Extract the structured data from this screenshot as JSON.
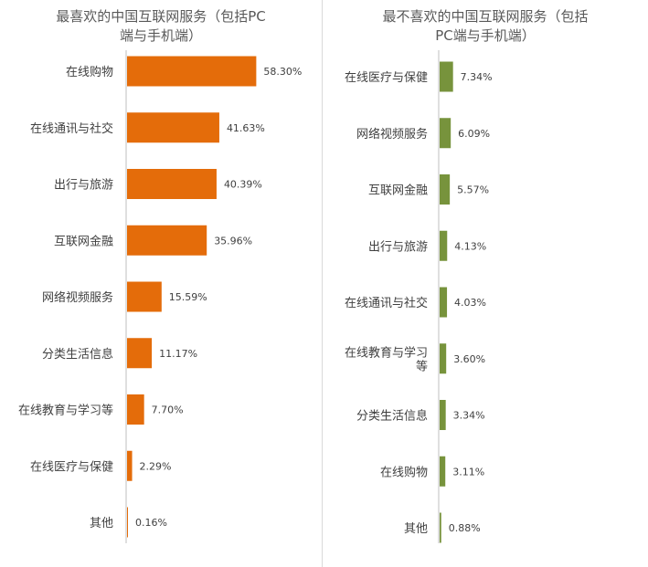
{
  "colors": {
    "left_bar": "#e46c0a",
    "right_bar": "#77933c",
    "text": "#404040",
    "title": "#595959"
  },
  "chart_data": [
    {
      "type": "bar",
      "orientation": "horizontal",
      "title": "最喜欢的中国互联网服务（包括PC\n端与手机端）",
      "categories": [
        "在线购物",
        "在线通讯与社交",
        "出行与旅游",
        "互联网金融",
        "网络视频服务",
        "分类生活信息",
        "在线教育与学习等",
        "在线医疗与保健",
        "其他"
      ],
      "values": [
        58.3,
        41.63,
        40.39,
        35.96,
        15.59,
        11.17,
        7.7,
        2.29,
        0.16
      ],
      "value_labels": [
        "58.30%",
        "41.63%",
        "40.39%",
        "35.96%",
        "15.59%",
        "11.17%",
        "7.70%",
        "2.29%",
        "0.16%"
      ],
      "xlim": [
        0,
        80
      ],
      "grid": false,
      "color": "#e46c0a"
    },
    {
      "type": "bar",
      "orientation": "horizontal",
      "title": "最不喜欢的中国互联网服务（包括\nPC端与手机端）",
      "categories": [
        "在线医疗与保健",
        "网络视频服务",
        "互联网金融",
        "出行与旅游",
        "在线通讯与社交",
        "在线教育与学习\n等",
        "分类生活信息",
        "在线购物",
        "其他"
      ],
      "values": [
        7.34,
        6.09,
        5.57,
        4.13,
        4.03,
        3.6,
        3.34,
        3.11,
        0.88
      ],
      "value_labels": [
        "7.34%",
        "6.09%",
        "5.57%",
        "4.13%",
        "4.03%",
        "3.60%",
        "3.34%",
        "3.11%",
        "0.88%"
      ],
      "xlim": [
        0,
        40
      ],
      "grid": false,
      "color": "#77933c"
    }
  ]
}
